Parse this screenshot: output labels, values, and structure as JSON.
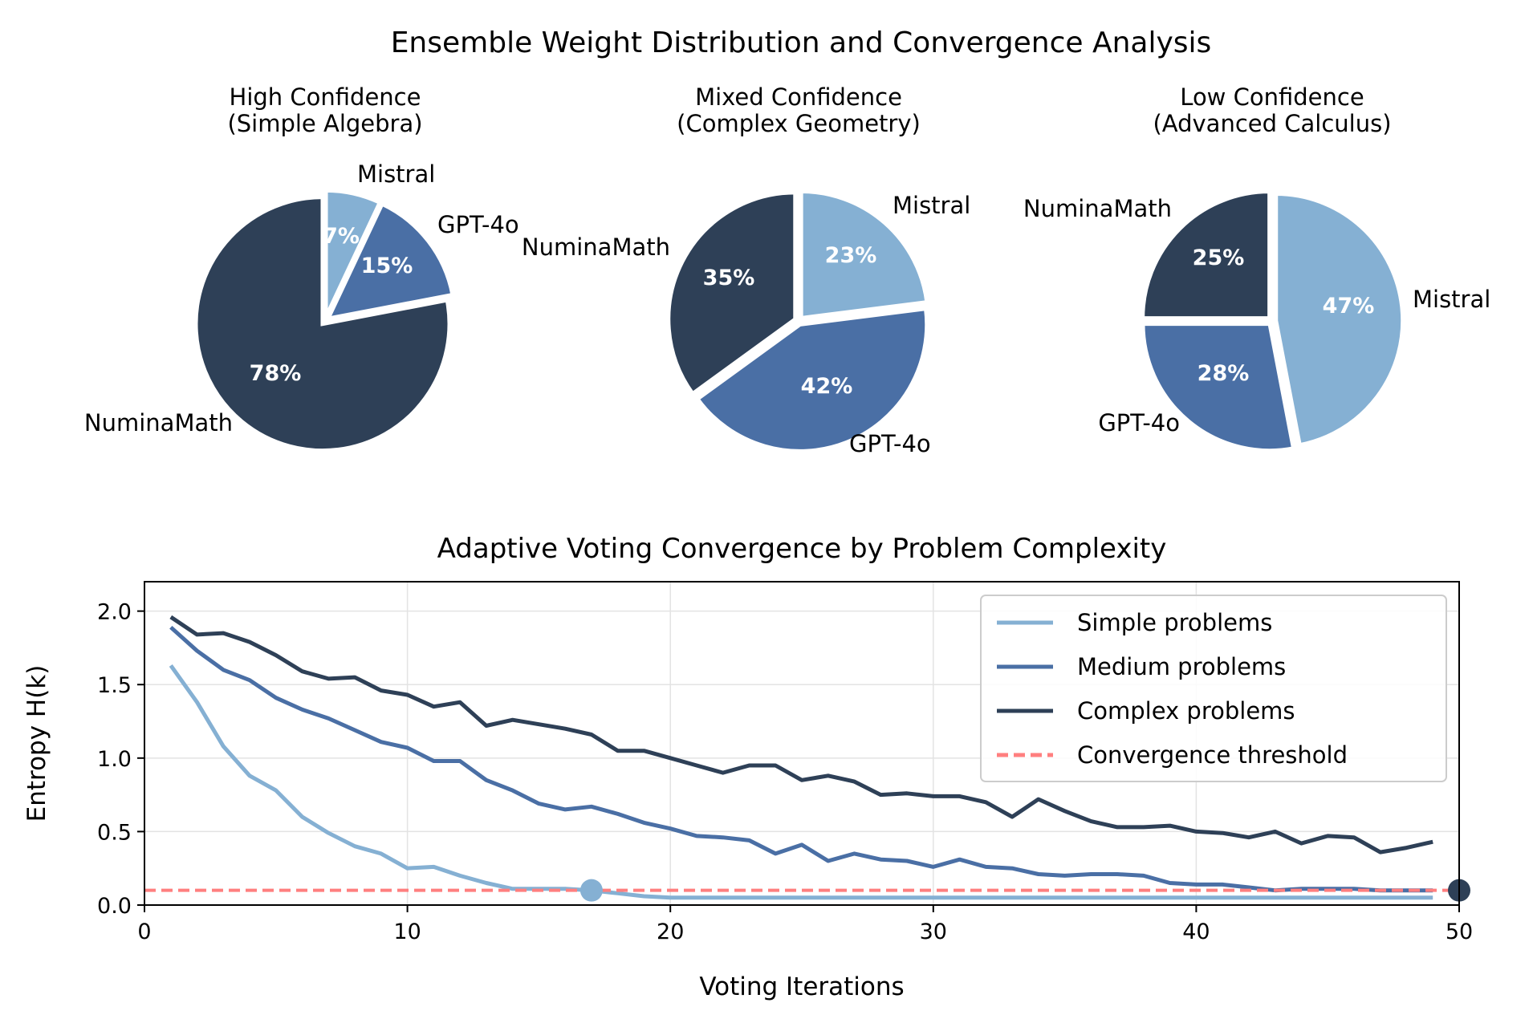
{
  "figure": {
    "title": "Ensemble Weight Distribution and Convergence Analysis"
  },
  "chart_data": [
    {
      "type": "pie",
      "title": "High Confidence\n(Simple Algebra)",
      "labels": [
        "Mistral",
        "GPT-4o",
        "NuminaMath"
      ],
      "values": [
        7,
        15,
        78
      ],
      "display_pct": [
        "7%",
        "15%",
        "78%"
      ],
      "colors": [
        "#85b0d3",
        "#4a6fa5",
        "#2e4057"
      ],
      "start_angle": 90,
      "direction": "clockwise",
      "explode": [
        0.03,
        0.03,
        0.03
      ]
    },
    {
      "type": "pie",
      "title": "Mixed Confidence\n(Complex Geometry)",
      "labels": [
        "Mistral",
        "GPT-4o",
        "NuminaMath"
      ],
      "values": [
        23,
        42,
        35
      ],
      "display_pct": [
        "23%",
        "42%",
        "35%"
      ],
      "colors": [
        "#85b0d3",
        "#4a6fa5",
        "#2e4057"
      ],
      "start_angle": 90,
      "direction": "clockwise",
      "explode": [
        0.03,
        0.03,
        0.03
      ]
    },
    {
      "type": "pie",
      "title": "Low Confidence\n(Advanced Calculus)",
      "labels": [
        "Mistral",
        "GPT-4o",
        "NuminaMath"
      ],
      "values": [
        47,
        28,
        25
      ],
      "display_pct": [
        "47%",
        "28%",
        "25%"
      ],
      "colors": [
        "#85b0d3",
        "#4a6fa5",
        "#2e4057"
      ],
      "start_angle": 90,
      "direction": "clockwise",
      "explode": [
        0.03,
        0.03,
        0.03
      ]
    },
    {
      "type": "line",
      "title": "Adaptive Voting Convergence by Problem Complexity",
      "xlabel": "Voting Iterations",
      "ylabel": "Entropy H(k)",
      "xlim": [
        0,
        50
      ],
      "ylim": [
        0,
        2.2
      ],
      "xticks": [
        0,
        10,
        20,
        30,
        40,
        50
      ],
      "yticks": [
        0.0,
        0.5,
        1.0,
        1.5,
        2.0
      ],
      "ytick_labels": [
        "0.0",
        "0.5",
        "1.0",
        "1.5",
        "2.0"
      ],
      "grid": true,
      "legend_position": "top-right",
      "x": [
        1,
        2,
        3,
        4,
        5,
        6,
        7,
        8,
        9,
        10,
        11,
        12,
        13,
        14,
        15,
        16,
        17,
        18,
        19,
        20,
        21,
        22,
        23,
        24,
        25,
        26,
        27,
        28,
        29,
        30,
        31,
        32,
        33,
        34,
        35,
        36,
        37,
        38,
        39,
        40,
        41,
        42,
        43,
        44,
        45,
        46,
        47,
        48,
        49
      ],
      "series": [
        {
          "name": "Simple problems",
          "color": "#85b0d3",
          "values": [
            1.63,
            1.38,
            1.08,
            0.88,
            0.78,
            0.6,
            0.49,
            0.4,
            0.35,
            0.25,
            0.26,
            0.2,
            0.15,
            0.11,
            0.11,
            0.11,
            0.1,
            0.08,
            0.06,
            0.05,
            0.05,
            0.05,
            0.05,
            0.05,
            0.05,
            0.05,
            0.05,
            0.05,
            0.05,
            0.05,
            0.05,
            0.05,
            0.05,
            0.05,
            0.05,
            0.05,
            0.05,
            0.05,
            0.05,
            0.05,
            0.05,
            0.05,
            0.05,
            0.05,
            0.05,
            0.05,
            0.05,
            0.05,
            0.05
          ]
        },
        {
          "name": "Medium problems",
          "color": "#4a6fa5",
          "values": [
            1.89,
            1.73,
            1.6,
            1.53,
            1.41,
            1.33,
            1.27,
            1.19,
            1.11,
            1.07,
            0.98,
            0.98,
            0.85,
            0.78,
            0.69,
            0.65,
            0.67,
            0.62,
            0.56,
            0.52,
            0.47,
            0.46,
            0.44,
            0.35,
            0.41,
            0.3,
            0.35,
            0.31,
            0.3,
            0.26,
            0.31,
            0.26,
            0.25,
            0.21,
            0.2,
            0.21,
            0.21,
            0.2,
            0.15,
            0.14,
            0.14,
            0.12,
            0.1,
            0.11,
            0.11,
            0.11,
            0.1,
            0.1,
            0.1
          ]
        },
        {
          "name": "Complex problems",
          "color": "#2e4057",
          "values": [
            1.96,
            1.84,
            1.85,
            1.79,
            1.7,
            1.59,
            1.54,
            1.55,
            1.46,
            1.43,
            1.35,
            1.38,
            1.22,
            1.26,
            1.23,
            1.2,
            1.16,
            1.05,
            1.05,
            1.0,
            0.95,
            0.9,
            0.95,
            0.95,
            0.85,
            0.88,
            0.84,
            0.75,
            0.76,
            0.74,
            0.74,
            0.7,
            0.6,
            0.72,
            0.64,
            0.57,
            0.53,
            0.53,
            0.54,
            0.5,
            0.49,
            0.46,
            0.5,
            0.42,
            0.47,
            0.46,
            0.36,
            0.39,
            0.43
          ]
        },
        {
          "name": "Convergence threshold",
          "color": "#ff7f7f",
          "style": "dashed",
          "constant": 0.1
        }
      ],
      "convergence_markers": [
        {
          "series": "Simple problems",
          "x": 17,
          "y": 0.1,
          "color": "#85b0d3"
        },
        {
          "series": "Complex problems",
          "x": 50,
          "y": 0.1,
          "color": "#2e4057"
        }
      ]
    }
  ]
}
